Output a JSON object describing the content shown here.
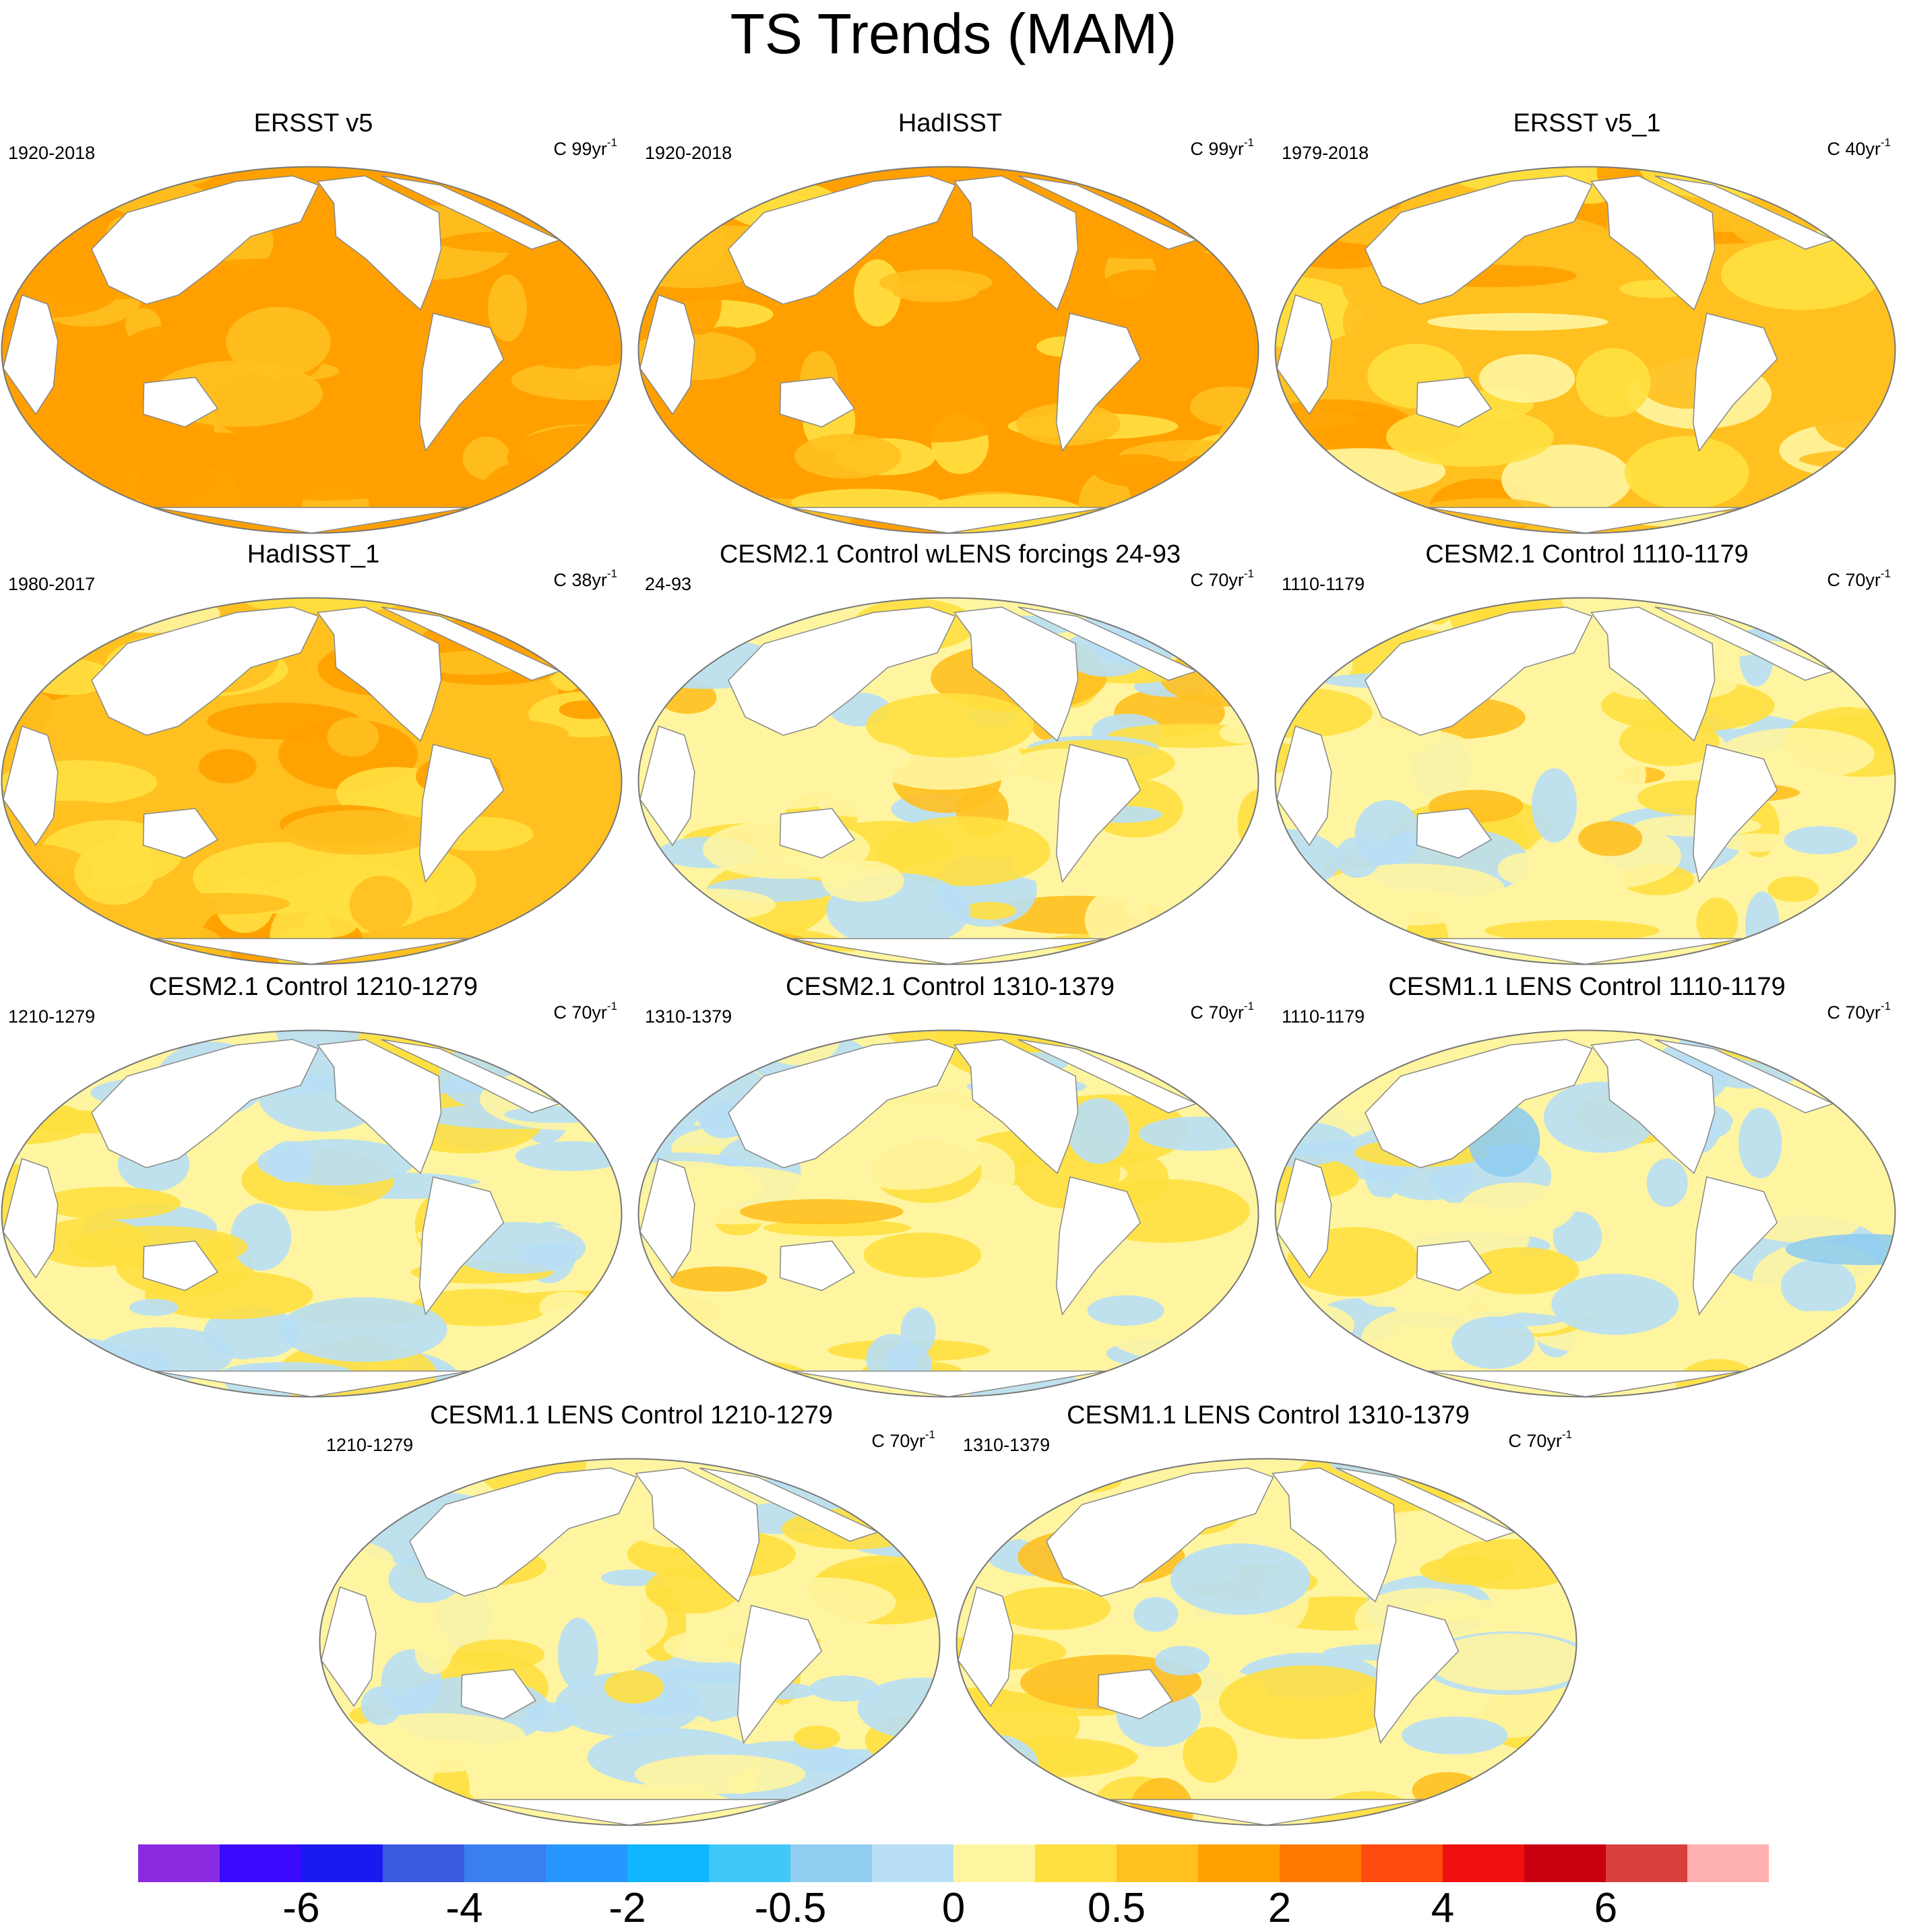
{
  "figure": {
    "title": "TS Trends (MAM)"
  },
  "colors": {
    "land": "#ffffff",
    "coast": "#888888",
    "frame": "#777777"
  },
  "chart_data": [
    {
      "type": "heatmap",
      "title": "ERSST v5",
      "period": "1920-2018",
      "units": "C 99yr",
      "units_exp": "-1",
      "tone": 0.9
    },
    {
      "type": "heatmap",
      "title": "HadISST",
      "period": "1920-2018",
      "units": "C 99yr",
      "units_exp": "-1",
      "tone": 0.8
    },
    {
      "type": "heatmap",
      "title": "ERSST v5_1",
      "period": "1979-2018",
      "units": "C 40yr",
      "units_exp": "-1",
      "tone": 0.5
    },
    {
      "type": "heatmap",
      "title": "HadISST_1",
      "period": "1980-2017",
      "units": "C 38yr",
      "units_exp": "-1",
      "tone": 0.6
    },
    {
      "type": "heatmap",
      "title": "CESM2.1 Control wLENS forcings 24-93",
      "period": "24-93",
      "units": "C 70yr",
      "units_exp": "-1",
      "tone": 0.15
    },
    {
      "type": "heatmap",
      "title": "CESM2.1 Control 1110-1179",
      "period": "1110-1179",
      "units": "C 70yr",
      "units_exp": "-1",
      "tone": 0.1
    },
    {
      "type": "heatmap",
      "title": "CESM2.1 Control 1210-1279",
      "period": "1210-1279",
      "units": "C 70yr",
      "units_exp": "-1",
      "tone": 0.0
    },
    {
      "type": "heatmap",
      "title": "CESM2.1 Control 1310-1379",
      "period": "1310-1379",
      "units": "C 70yr",
      "units_exp": "-1",
      "tone": 0.05
    },
    {
      "type": "heatmap",
      "title": "CESM1.1 LENS Control 1110-1179",
      "period": "1110-1179",
      "units": "C 70yr",
      "units_exp": "-1",
      "tone": -0.05
    },
    {
      "type": "heatmap",
      "title": "CESM1.1 LENS Control 1210-1279",
      "period": "1210-1279",
      "units": "C 70yr",
      "units_exp": "-1",
      "tone": 0.0
    },
    {
      "type": "heatmap",
      "title": "CESM1.1 LENS Control 1310-1379",
      "period": "1310-1379",
      "units": "C 70yr",
      "units_exp": "-1",
      "tone": 0.05
    }
  ],
  "colorbar": {
    "colors": [
      "#8a2be2",
      "#3a0aff",
      "#1a1af0",
      "#3a5ae0",
      "#3a7ff0",
      "#2896ff",
      "#10b6ff",
      "#40c8f8",
      "#90cdf0",
      "#b8dff5",
      "#fff5a0",
      "#ffe040",
      "#ffc020",
      "#ffa000",
      "#ff7a00",
      "#ff4a10",
      "#f01010",
      "#c80010",
      "#d84040",
      "#ffb0b0"
    ],
    "tick_labels": [
      "-6",
      "-4",
      "-2",
      "-0.5",
      "0",
      "0.5",
      "2",
      "4",
      "6"
    ],
    "tick_boundary_index": [
      2,
      4,
      6,
      8,
      10,
      12,
      14,
      16,
      18
    ]
  }
}
